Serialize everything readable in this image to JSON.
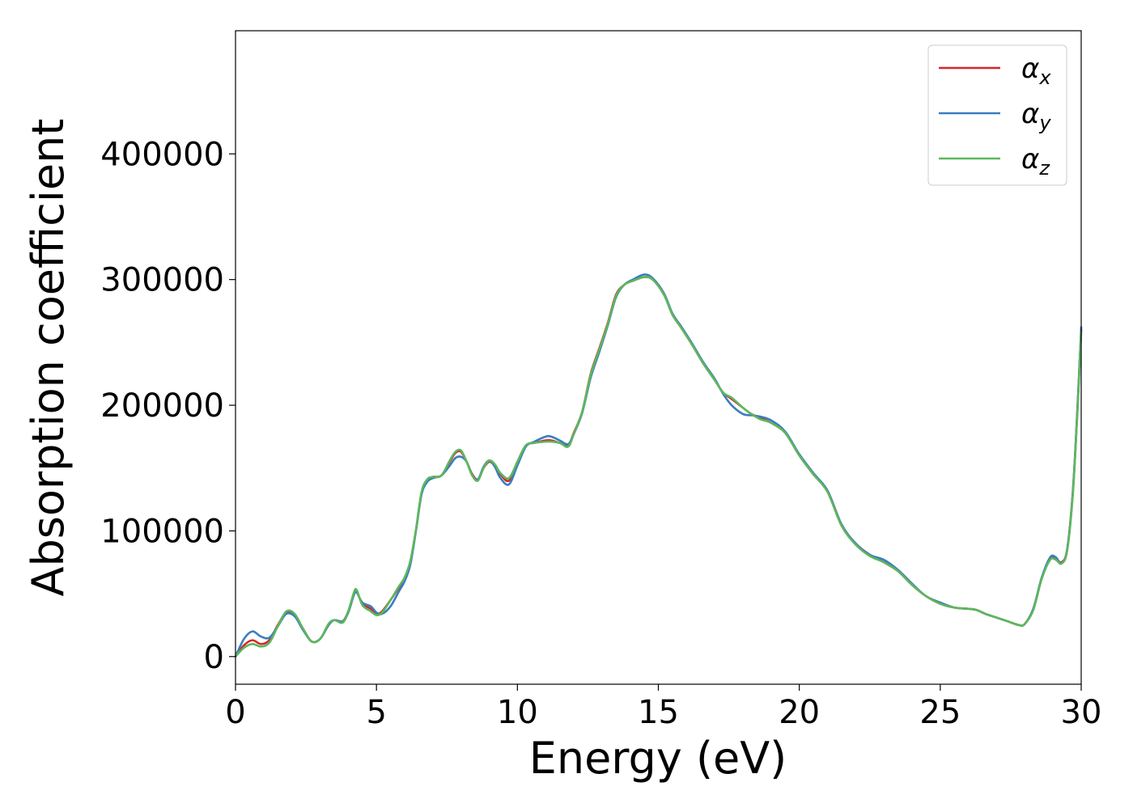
{
  "chart_data": {
    "type": "line",
    "title": "",
    "xlabel": "Energy (eV)",
    "ylabel": "Absorption coefficient",
    "xlim": [
      0,
      30
    ],
    "ylim": [
      -22000,
      498000
    ],
    "x_ticks": [
      0,
      5,
      10,
      15,
      20,
      25,
      30
    ],
    "x_tick_labels": [
      "0",
      "5",
      "10",
      "15",
      "20",
      "25",
      "30"
    ],
    "y_ticks": [
      0,
      100000,
      200000,
      300000,
      400000
    ],
    "y_tick_labels": [
      "0",
      "100000",
      "200000",
      "300000",
      "400000"
    ],
    "grid": false,
    "legend": {
      "position": "top-right"
    },
    "x": [
      0,
      0.3,
      0.6,
      0.9,
      1.2,
      1.5,
      1.8,
      2.1,
      2.4,
      2.7,
      3.0,
      3.3,
      3.5,
      3.8,
      4.0,
      4.2,
      4.3,
      4.5,
      4.8,
      5.0,
      5.2,
      5.5,
      5.8,
      6.0,
      6.2,
      6.4,
      6.6,
      6.8,
      7.0,
      7.3,
      7.6,
      7.8,
      8.0,
      8.2,
      8.4,
      8.6,
      8.8,
      9.0,
      9.2,
      9.4,
      9.7,
      10.0,
      10.3,
      10.6,
      11.0,
      11.2,
      11.5,
      11.8,
      12.0,
      12.3,
      12.6,
      12.9,
      13.2,
      13.5,
      13.8,
      14.1,
      14.5,
      14.8,
      15.2,
      15.5,
      15.8,
      16.2,
      16.6,
      17.0,
      17.3,
      17.6,
      18.0,
      18.3,
      18.6,
      19.0,
      19.5,
      20.0,
      20.5,
      21.0,
      21.5,
      22.0,
      22.5,
      23.0,
      23.5,
      24.0,
      24.5,
      25.0,
      25.5,
      26.0,
      26.3,
      26.6,
      27.0,
      27.4,
      27.8,
      28.0,
      28.3,
      28.6,
      28.9,
      29.1,
      29.3,
      29.5,
      29.7,
      29.85,
      30.0
    ],
    "series": [
      {
        "name": "α_x",
        "label_main": "α",
        "label_sub": "x",
        "color": "#d62728",
        "values": [
          0,
          9000,
          13000,
          10000,
          13000,
          25000,
          35000,
          33000,
          22000,
          12000,
          14000,
          25000,
          29000,
          28000,
          36000,
          50000,
          52000,
          42000,
          38000,
          34000,
          36000,
          45000,
          55000,
          62000,
          75000,
          100000,
          130000,
          140000,
          143000,
          144000,
          155000,
          162000,
          163000,
          155000,
          145000,
          141000,
          150000,
          155000,
          152000,
          145000,
          140000,
          155000,
          168000,
          170000,
          172000,
          172000,
          170000,
          168000,
          178000,
          195000,
          225000,
          245000,
          265000,
          288000,
          296000,
          299000,
          302000,
          300000,
          288000,
          272000,
          262000,
          248000,
          233000,
          220000,
          210000,
          205000,
          198000,
          193000,
          190000,
          186000,
          178000,
          160000,
          145000,
          132000,
          105000,
          90000,
          81000,
          75000,
          68000,
          57000,
          48000,
          42000,
          39000,
          38000,
          37000,
          34000,
          31000,
          28000,
          25000,
          26000,
          38000,
          62000,
          78000,
          78000,
          75000,
          85000,
          130000,
          190000,
          260000
        ]
      },
      {
        "name": "α_y",
        "label_main": "α",
        "label_sub": "y",
        "color": "#3a7dbf",
        "values": [
          0,
          14000,
          20000,
          16000,
          15000,
          24000,
          34000,
          32000,
          21000,
          12000,
          14000,
          25000,
          29000,
          28000,
          35000,
          49000,
          51000,
          43000,
          40000,
          35000,
          34000,
          40000,
          52000,
          60000,
          73000,
          100000,
          129000,
          139000,
          142000,
          144000,
          152000,
          158000,
          159000,
          155000,
          144000,
          141000,
          151000,
          156000,
          151000,
          142000,
          137000,
          152000,
          167000,
          171000,
          175000,
          175000,
          172000,
          169000,
          177000,
          194000,
          222000,
          242000,
          263000,
          286000,
          296000,
          300000,
          304000,
          301000,
          289000,
          273000,
          263000,
          249000,
          234000,
          221000,
          209000,
          200000,
          193000,
          192000,
          191000,
          188000,
          179000,
          161000,
          146000,
          132000,
          105000,
          90000,
          81000,
          77000,
          69000,
          58000,
          48000,
          43000,
          39000,
          38000,
          37000,
          34000,
          31000,
          28000,
          25000,
          26000,
          38000,
          63000,
          79000,
          79000,
          74000,
          85000,
          130000,
          190000,
          262000
        ]
      },
      {
        "name": "α_z",
        "label_main": "α",
        "label_sub": "z",
        "color": "#5cb85c",
        "values": [
          0,
          7000,
          10000,
          8000,
          11000,
          24000,
          36000,
          34000,
          22000,
          12000,
          14000,
          26000,
          29000,
          27000,
          36000,
          51000,
          53000,
          41000,
          36000,
          33000,
          35000,
          45000,
          56000,
          63000,
          76000,
          101000,
          131000,
          141000,
          143000,
          144000,
          156000,
          163000,
          164000,
          155000,
          144000,
          140000,
          150000,
          156000,
          153000,
          146000,
          142000,
          155000,
          168000,
          170000,
          171000,
          171000,
          170000,
          167000,
          177000,
          195000,
          224000,
          244000,
          264000,
          287000,
          296000,
          299000,
          302000,
          300000,
          288000,
          272000,
          262000,
          248000,
          233000,
          220000,
          210000,
          206000,
          198000,
          193000,
          189000,
          186000,
          178000,
          160000,
          145000,
          131000,
          104000,
          89000,
          80000,
          75000,
          68000,
          57000,
          48000,
          42000,
          39000,
          38000,
          37000,
          34000,
          31000,
          28000,
          25000,
          26000,
          37000,
          62000,
          77000,
          77000,
          74000,
          84000,
          128000,
          188000,
          258000
        ]
      }
    ]
  }
}
